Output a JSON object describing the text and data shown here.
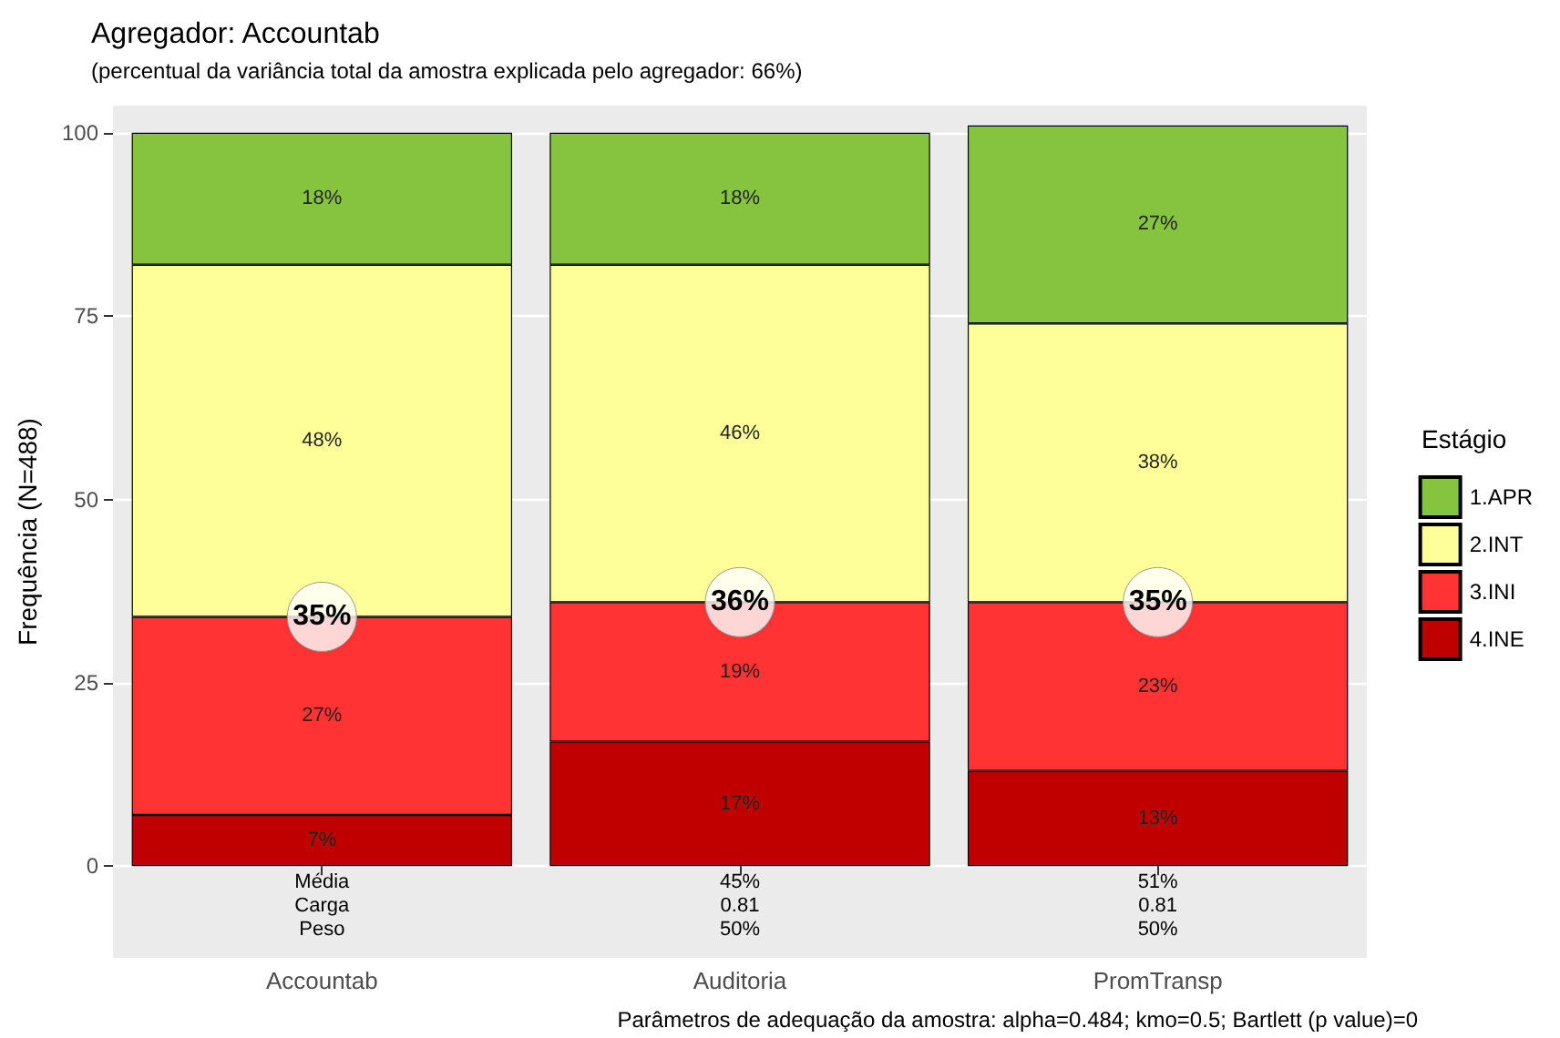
{
  "chart_data": {
    "type": "bar",
    "title": "Agregador: Accountab",
    "subtitle": "(percentual da variância total da amostra explicada pelo agregador: 66%)",
    "ylabel": "Frequência (N=488)",
    "legend_title": "Estágio",
    "categories": [
      "Accountab",
      "Auditoria",
      "PromTransp"
    ],
    "series": [
      {
        "name": "4.INE",
        "color": "#c00000",
        "values": [
          7,
          17,
          13
        ],
        "value_labels": [
          "7%",
          "17%",
          "13%"
        ]
      },
      {
        "name": "3.INI",
        "color": "#ff3333",
        "values": [
          27,
          19,
          23
        ],
        "value_labels": [
          "27%",
          "19%",
          "23%"
        ]
      },
      {
        "name": "2.INT",
        "color": "#ffff99",
        "values": [
          48,
          46,
          38
        ],
        "value_labels": [
          "48%",
          "46%",
          "38%"
        ]
      },
      {
        "name": "1.APR",
        "color": "#86c440",
        "values": [
          18,
          18,
          27
        ],
        "value_labels": [
          "18%",
          "18%",
          "27%"
        ]
      }
    ],
    "stacked": true,
    "ylim": [
      -12.5,
      103.7
    ],
    "yticks": [
      0,
      25,
      50,
      75,
      100
    ],
    "grid": "y",
    "legend": "right",
    "annotations": [
      {
        "text": "35%",
        "x": "Accountab",
        "y": 34
      },
      {
        "text": "36%",
        "x": "Auditoria",
        "y": 36
      },
      {
        "text": "35%",
        "x": "PromTransp",
        "y": 36
      },
      "Média",
      "Carga",
      "Peso",
      "45%",
      "0.81",
      "50%",
      "51%",
      "0.81",
      "50%",
      "Parâmetros de adequação da amostra: alpha=0.484; kmo=0.5; Bartlett (p value)=0"
    ]
  }
}
